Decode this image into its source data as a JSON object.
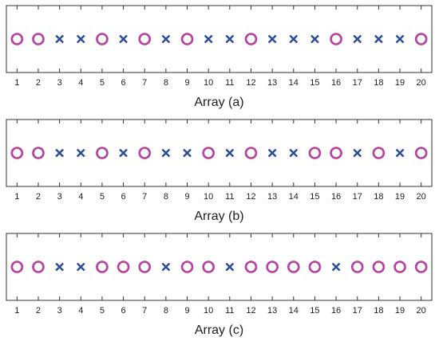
{
  "chart_data": [
    {
      "type": "scatter",
      "xlabel": "Array (a)",
      "xlim": [
        0.5,
        20.5
      ],
      "xticks": [
        1,
        2,
        3,
        4,
        5,
        6,
        7,
        8,
        9,
        10,
        11,
        12,
        13,
        14,
        15,
        16,
        17,
        18,
        19,
        20
      ],
      "series": [
        {
          "marker": "circle",
          "color": "#b8409e",
          "x": [
            1,
            2,
            5,
            7,
            9,
            12,
            16,
            20
          ]
        },
        {
          "marker": "cross",
          "color": "#2b4c9b",
          "x": [
            3,
            4,
            6,
            8,
            10,
            11,
            13,
            14,
            15,
            17,
            18,
            19
          ]
        }
      ]
    },
    {
      "type": "scatter",
      "xlabel": "Array (b)",
      "xlim": [
        0.5,
        20.5
      ],
      "xticks": [
        1,
        2,
        3,
        4,
        5,
        6,
        7,
        8,
        9,
        10,
        11,
        12,
        13,
        14,
        15,
        16,
        17,
        18,
        19,
        20
      ],
      "series": [
        {
          "marker": "circle",
          "color": "#b8409e",
          "x": [
            1,
            2,
            5,
            7,
            10,
            12,
            15,
            16,
            18,
            20
          ]
        },
        {
          "marker": "cross",
          "color": "#2b4c9b",
          "x": [
            3,
            4,
            6,
            8,
            9,
            11,
            13,
            14,
            17,
            19
          ]
        }
      ]
    },
    {
      "type": "scatter",
      "xlabel": "Array (c)",
      "xlim": [
        0.5,
        20.5
      ],
      "xticks": [
        1,
        2,
        3,
        4,
        5,
        6,
        7,
        8,
        9,
        10,
        11,
        12,
        13,
        14,
        15,
        16,
        17,
        18,
        19,
        20
      ],
      "series": [
        {
          "marker": "circle",
          "color": "#b8409e",
          "x": [
            1,
            2,
            5,
            6,
            7,
            9,
            10,
            12,
            13,
            14,
            15,
            17,
            18,
            19,
            20
          ]
        },
        {
          "marker": "cross",
          "color": "#2b4c9b",
          "x": [
            3,
            4,
            8,
            11,
            16
          ]
        }
      ]
    }
  ]
}
